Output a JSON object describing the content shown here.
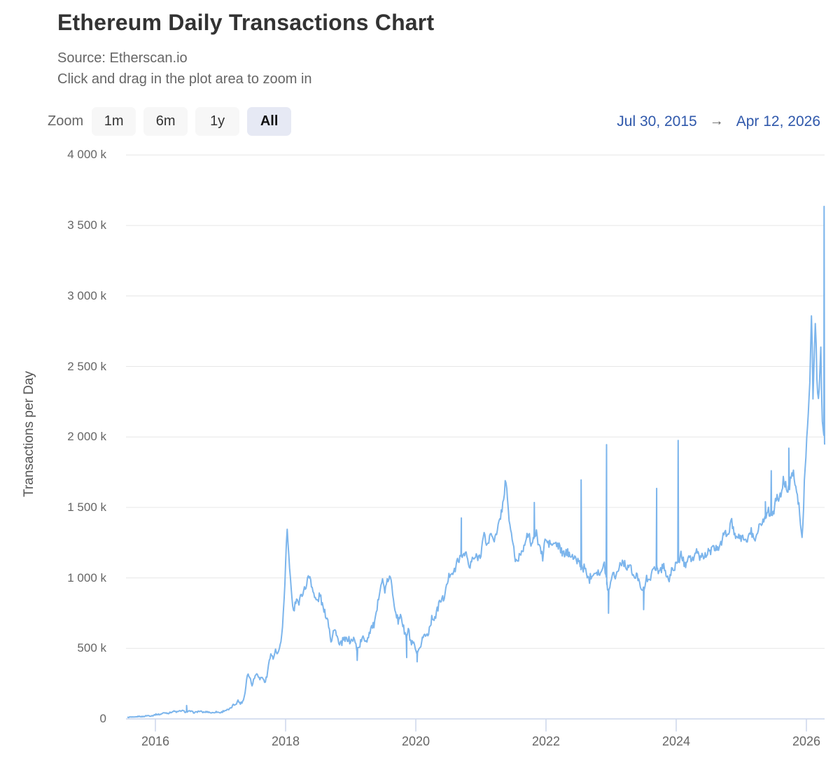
{
  "header": {
    "title": "Ethereum Daily Transactions Chart",
    "source_line": "Source: Etherscan.io",
    "hint_line": "Click and drag in the plot area to zoom in"
  },
  "range_selector": {
    "zoom_label": "Zoom",
    "buttons": [
      {
        "label": "1m",
        "selected": false
      },
      {
        "label": "6m",
        "selected": false
      },
      {
        "label": "1y",
        "selected": false
      },
      {
        "label": "All",
        "selected": true
      }
    ],
    "from_date": "Jul 30, 2015",
    "arrow": "→",
    "to_date": "Apr 12, 2026"
  },
  "colors": {
    "series_line": "#7cb5ec",
    "grid_line": "#e6e6e6",
    "axis_line": "#ccd6eb",
    "tick_label": "#666666",
    "title_text": "#333333",
    "subtitle_text": "#666666",
    "date_text": "#2f58ab",
    "button_bg": "#f7f7f7",
    "button_selected_bg": "#e6e9f4"
  },
  "chart_data": {
    "type": "line",
    "title": "Ethereum Daily Transactions Chart",
    "source": "Etherscan.io",
    "series_name": "Ethereum Daily Transactions",
    "xlabel": "",
    "ylabel": "Transactions per Day",
    "unit": "thousand transactions per day",
    "grid": "horizontal",
    "legend": "none",
    "x_range_dates": [
      "Jul 30, 2015",
      "Apr 12, 2026"
    ],
    "x_range_decimal_years": [
      2015.577,
      2026.28
    ],
    "ylim_k": [
      0,
      4000
    ],
    "y_ticks": [
      {
        "value": 0,
        "label": "0"
      },
      {
        "value": 500,
        "label": "500 k"
      },
      {
        "value": 1000,
        "label": "1 000 k"
      },
      {
        "value": 1500,
        "label": "1 500 k"
      },
      {
        "value": 2000,
        "label": "2 000 k"
      },
      {
        "value": 2500,
        "label": "2 500 k"
      },
      {
        "value": 3000,
        "label": "3 000 k"
      },
      {
        "value": 3500,
        "label": "3 500 k"
      },
      {
        "value": 4000,
        "label": "4 000 k"
      }
    ],
    "x_ticks": [
      {
        "value": 2016,
        "label": "2016"
      },
      {
        "value": 2018,
        "label": "2018"
      },
      {
        "value": 2020,
        "label": "2020"
      },
      {
        "value": 2022,
        "label": "2022"
      },
      {
        "value": 2024,
        "label": "2024"
      },
      {
        "value": 2026,
        "label": "2026"
      }
    ],
    "anchor_format": [
      "decimal_year",
      "transactions_k",
      "daily_variation_k"
    ],
    "series_anchors": [
      [
        2015.577,
        10,
        4
      ],
      [
        2015.7,
        14,
        5
      ],
      [
        2015.8,
        18,
        5
      ],
      [
        2015.9,
        22,
        6
      ],
      [
        2016.0,
        28,
        7
      ],
      [
        2016.1,
        38,
        8
      ],
      [
        2016.2,
        44,
        8
      ],
      [
        2016.3,
        52,
        9
      ],
      [
        2016.4,
        55,
        9
      ],
      [
        2016.5,
        52,
        9
      ],
      [
        2016.6,
        48,
        8
      ],
      [
        2016.7,
        52,
        9
      ],
      [
        2016.8,
        47,
        8
      ],
      [
        2016.9,
        46,
        8
      ],
      [
        2017.0,
        48,
        9
      ],
      [
        2017.08,
        58,
        10
      ],
      [
        2017.15,
        75,
        12
      ],
      [
        2017.22,
        100,
        15
      ],
      [
        2017.27,
        135,
        15
      ],
      [
        2017.31,
        105,
        14
      ],
      [
        2017.35,
        125,
        15
      ],
      [
        2017.38,
        200,
        18
      ],
      [
        2017.41,
        330,
        22
      ],
      [
        2017.45,
        290,
        22
      ],
      [
        2017.48,
        235,
        20
      ],
      [
        2017.52,
        300,
        22
      ],
      [
        2017.56,
        335,
        22
      ],
      [
        2017.6,
        270,
        20
      ],
      [
        2017.64,
        305,
        20
      ],
      [
        2017.68,
        265,
        20
      ],
      [
        2017.72,
        300,
        22
      ],
      [
        2017.75,
        430,
        25
      ],
      [
        2017.78,
        470,
        25
      ],
      [
        2017.81,
        430,
        25
      ],
      [
        2017.84,
        480,
        25
      ],
      [
        2017.87,
        450,
        25
      ],
      [
        2017.9,
        480,
        25
      ],
      [
        2017.93,
        560,
        28
      ],
      [
        2017.96,
        700,
        30
      ],
      [
        2017.99,
        950,
        30
      ],
      [
        2018.005,
        1150,
        35
      ],
      [
        2018.02,
        1355,
        30
      ],
      [
        2018.04,
        1250,
        35
      ],
      [
        2018.06,
        1080,
        40
      ],
      [
        2018.1,
        820,
        45
      ],
      [
        2018.13,
        760,
        45
      ],
      [
        2018.17,
        880,
        45
      ],
      [
        2018.2,
        830,
        45
      ],
      [
        2018.25,
        870,
        45
      ],
      [
        2018.3,
        930,
        45
      ],
      [
        2018.33,
        1000,
        40
      ],
      [
        2018.37,
        1005,
        40
      ],
      [
        2018.4,
        940,
        45
      ],
      [
        2018.45,
        870,
        45
      ],
      [
        2018.5,
        830,
        45
      ],
      [
        2018.53,
        870,
        45
      ],
      [
        2018.58,
        790,
        45
      ],
      [
        2018.62,
        740,
        45
      ],
      [
        2018.67,
        640,
        45
      ],
      [
        2018.7,
        560,
        40
      ],
      [
        2018.73,
        640,
        40
      ],
      [
        2018.78,
        600,
        40
      ],
      [
        2018.82,
        520,
        40
      ],
      [
        2018.87,
        560,
        40
      ],
      [
        2018.92,
        540,
        40
      ],
      [
        2018.96,
        580,
        40
      ],
      [
        2019.0,
        560,
        40
      ],
      [
        2019.05,
        550,
        40
      ],
      [
        2019.1,
        500,
        40
      ],
      [
        2019.15,
        540,
        40
      ],
      [
        2019.2,
        560,
        40
      ],
      [
        2019.25,
        580,
        42
      ],
      [
        2019.3,
        620,
        42
      ],
      [
        2019.35,
        660,
        45
      ],
      [
        2019.4,
        760,
        48
      ],
      [
        2019.45,
        920,
        45
      ],
      [
        2019.49,
        990,
        40
      ],
      [
        2019.53,
        920,
        45
      ],
      [
        2019.57,
        970,
        40
      ],
      [
        2019.61,
        1000,
        38
      ],
      [
        2019.65,
        900,
        45
      ],
      [
        2019.69,
        760,
        48
      ],
      [
        2019.73,
        660,
        50
      ],
      [
        2019.77,
        780,
        50
      ],
      [
        2019.81,
        640,
        50
      ],
      [
        2019.85,
        560,
        50
      ],
      [
        2019.89,
        640,
        50
      ],
      [
        2019.93,
        540,
        48
      ],
      [
        2019.97,
        500,
        45
      ],
      [
        2020.02,
        460,
        40
      ],
      [
        2020.06,
        500,
        40
      ],
      [
        2020.1,
        560,
        40
      ],
      [
        2020.15,
        600,
        40
      ],
      [
        2020.2,
        630,
        40
      ],
      [
        2020.25,
        700,
        42
      ],
      [
        2020.3,
        740,
        42
      ],
      [
        2020.35,
        800,
        42
      ],
      [
        2020.4,
        840,
        42
      ],
      [
        2020.45,
        900,
        42
      ],
      [
        2020.5,
        980,
        42
      ],
      [
        2020.55,
        1060,
        42
      ],
      [
        2020.6,
        1050,
        42
      ],
      [
        2020.65,
        1120,
        42
      ],
      [
        2020.7,
        1160,
        40
      ],
      [
        2020.74,
        1180,
        42
      ],
      [
        2020.78,
        1150,
        42
      ],
      [
        2020.82,
        1080,
        45
      ],
      [
        2020.86,
        1130,
        45
      ],
      [
        2020.9,
        1120,
        45
      ],
      [
        2020.95,
        1160,
        45
      ],
      [
        2021.0,
        1180,
        48
      ],
      [
        2021.05,
        1290,
        48
      ],
      [
        2021.1,
        1250,
        48
      ],
      [
        2021.15,
        1300,
        48
      ],
      [
        2021.2,
        1280,
        48
      ],
      [
        2021.25,
        1330,
        48
      ],
      [
        2021.3,
        1420,
        45
      ],
      [
        2021.33,
        1500,
        42
      ],
      [
        2021.36,
        1620,
        38
      ],
      [
        2021.38,
        1730,
        30
      ],
      [
        2021.4,
        1600,
        40
      ],
      [
        2021.42,
        1450,
        45
      ],
      [
        2021.45,
        1350,
        45
      ],
      [
        2021.5,
        1250,
        45
      ],
      [
        2021.53,
        1120,
        42
      ],
      [
        2021.56,
        1080,
        42
      ],
      [
        2021.6,
        1180,
        45
      ],
      [
        2021.65,
        1220,
        48
      ],
      [
        2021.7,
        1280,
        48
      ],
      [
        2021.75,
        1300,
        48
      ],
      [
        2021.78,
        1250,
        48
      ],
      [
        2021.85,
        1310,
        48
      ],
      [
        2021.9,
        1250,
        48
      ],
      [
        2021.95,
        1120,
        45
      ],
      [
        2021.98,
        1250,
        48
      ],
      [
        2022.0,
        1280,
        50
      ],
      [
        2022.05,
        1250,
        50
      ],
      [
        2022.1,
        1210,
        50
      ],
      [
        2022.15,
        1270,
        50
      ],
      [
        2022.2,
        1210,
        50
      ],
      [
        2022.25,
        1160,
        50
      ],
      [
        2022.3,
        1200,
        50
      ],
      [
        2022.35,
        1150,
        50
      ],
      [
        2022.4,
        1180,
        50
      ],
      [
        2022.45,
        1130,
        50
      ],
      [
        2022.5,
        1100,
        48
      ],
      [
        2022.58,
        1080,
        48
      ],
      [
        2022.62,
        1020,
        48
      ],
      [
        2022.66,
        990,
        48
      ],
      [
        2022.7,
        1050,
        48
      ],
      [
        2022.75,
        1020,
        48
      ],
      [
        2022.8,
        1060,
        48
      ],
      [
        2022.85,
        1030,
        48
      ],
      [
        2022.9,
        1080,
        48
      ],
      [
        2022.96,
        900,
        45
      ],
      [
        2023.0,
        1000,
        45
      ],
      [
        2023.05,
        1020,
        45
      ],
      [
        2023.1,
        1060,
        45
      ],
      [
        2023.15,
        1090,
        45
      ],
      [
        2023.2,
        1120,
        45
      ],
      [
        2023.25,
        1080,
        45
      ],
      [
        2023.3,
        1060,
        45
      ],
      [
        2023.35,
        1020,
        45
      ],
      [
        2023.4,
        1000,
        45
      ],
      [
        2023.45,
        960,
        45
      ],
      [
        2023.5,
        920,
        45
      ],
      [
        2023.55,
        980,
        45
      ],
      [
        2023.6,
        1020,
        45
      ],
      [
        2023.65,
        1050,
        45
      ],
      [
        2023.7,
        1070,
        45
      ],
      [
        2023.75,
        1060,
        45
      ],
      [
        2023.8,
        1080,
        45
      ],
      [
        2023.85,
        1020,
        45
      ],
      [
        2023.9,
        1000,
        45
      ],
      [
        2023.95,
        1060,
        45
      ],
      [
        2024.0,
        1100,
        48
      ],
      [
        2024.08,
        1150,
        48
      ],
      [
        2024.13,
        1100,
        48
      ],
      [
        2024.18,
        1160,
        48
      ],
      [
        2024.22,
        1120,
        48
      ],
      [
        2024.27,
        1150,
        48
      ],
      [
        2024.32,
        1180,
        48
      ],
      [
        2024.36,
        1130,
        48
      ],
      [
        2024.4,
        1180,
        48
      ],
      [
        2024.45,
        1150,
        48
      ],
      [
        2024.5,
        1180,
        48
      ],
      [
        2024.55,
        1220,
        48
      ],
      [
        2024.6,
        1180,
        48
      ],
      [
        2024.65,
        1230,
        48
      ],
      [
        2024.7,
        1260,
        48
      ],
      [
        2024.75,
        1300,
        48
      ],
      [
        2024.8,
        1340,
        48
      ],
      [
        2024.85,
        1390,
        45
      ],
      [
        2024.88,
        1320,
        45
      ],
      [
        2024.92,
        1280,
        45
      ],
      [
        2024.96,
        1300,
        45
      ],
      [
        2025.0,
        1260,
        48
      ],
      [
        2025.05,
        1300,
        48
      ],
      [
        2025.1,
        1270,
        48
      ],
      [
        2025.15,
        1320,
        48
      ],
      [
        2025.2,
        1280,
        48
      ],
      [
        2025.25,
        1330,
        48
      ],
      [
        2025.3,
        1380,
        48
      ],
      [
        2025.35,
        1430,
        48
      ],
      [
        2025.42,
        1460,
        50
      ],
      [
        2025.5,
        1480,
        52
      ],
      [
        2025.55,
        1550,
        55
      ],
      [
        2025.6,
        1600,
        58
      ],
      [
        2025.65,
        1680,
        58
      ],
      [
        2025.7,
        1620,
        58
      ],
      [
        2025.76,
        1700,
        58
      ],
      [
        2025.8,
        1750,
        55
      ],
      [
        2025.84,
        1650,
        55
      ],
      [
        2025.88,
        1550,
        55
      ],
      [
        2025.9,
        1450,
        50
      ],
      [
        2025.93,
        1250,
        40
      ],
      [
        2025.95,
        1400,
        45
      ],
      [
        2025.97,
        1700,
        50
      ],
      [
        2026.0,
        1950,
        60
      ],
      [
        2026.03,
        2150,
        70
      ],
      [
        2026.06,
        2450,
        70
      ],
      [
        2026.08,
        2900,
        40
      ],
      [
        2026.1,
        2300,
        70
      ],
      [
        2026.12,
        2600,
        70
      ],
      [
        2026.14,
        2890,
        40
      ],
      [
        2026.16,
        2400,
        70
      ],
      [
        2026.18,
        2200,
        70
      ],
      [
        2026.2,
        2350,
        70
      ],
      [
        2026.22,
        2680,
        50
      ],
      [
        2026.24,
        2150,
        60
      ],
      [
        2026.26,
        2050,
        50
      ],
      [
        2026.28,
        1950,
        40
      ]
    ],
    "event_spikes_k": [
      [
        2016.48,
        95
      ],
      [
        2020.7,
        1425
      ],
      [
        2021.82,
        1535
      ],
      [
        2022.54,
        1695
      ],
      [
        2022.93,
        1945
      ],
      [
        2023.7,
        1635
      ],
      [
        2024.03,
        1975
      ],
      [
        2025.37,
        1540
      ],
      [
        2025.46,
        1760
      ],
      [
        2025.73,
        1920
      ],
      [
        2026.272,
        3635
      ]
    ],
    "event_dips_k": [
      [
        2019.1,
        415
      ],
      [
        2019.86,
        435
      ],
      [
        2020.02,
        405
      ],
      [
        2022.96,
        750
      ],
      [
        2023.5,
        775
      ]
    ]
  }
}
